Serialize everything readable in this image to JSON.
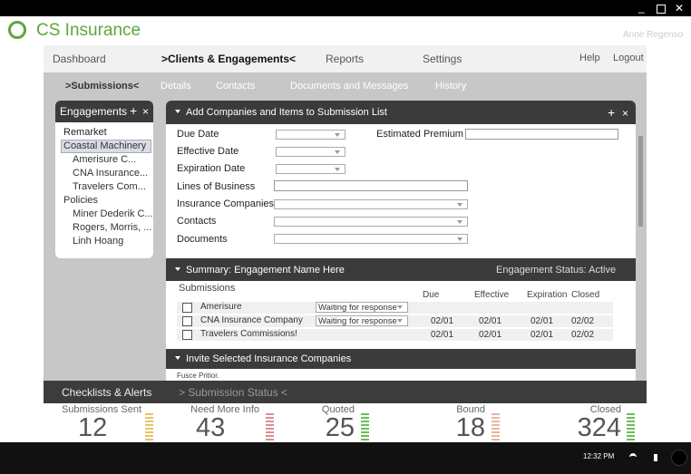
{
  "header": {
    "app_name": "CS Insurance",
    "user": "Anne Regenso"
  },
  "nav": {
    "items": [
      "Dashboard",
      ">Clients & Engagements<",
      "Reports",
      "Settings"
    ],
    "right": [
      "Help",
      "Logout"
    ]
  },
  "subnav": [
    ">Submissions<",
    "Details",
    "Contacts",
    "Documents and Messages",
    "History"
  ],
  "engagements": {
    "title": "Engagements",
    "items": [
      "Remarket",
      "Coastal Machinery",
      "Amerisure C...",
      "CNA Insurance...",
      "Travelers Com...",
      "Policies",
      "Miner Dederik C...",
      "Rogers, Morris, ...",
      "Linh Hoang"
    ]
  },
  "add_panel": {
    "title": "Add Companies and Items to Submission List",
    "fields": [
      "Due Date",
      "Effective Date",
      "Expiration Date",
      "Lines of Business",
      "Insurance Companies",
      "Contacts",
      "Documents"
    ],
    "estimated_premium": "Estimated Premium"
  },
  "summary": {
    "title": "Summary: Engagement Name Here",
    "status": "Engagement Status: Active",
    "columns": [
      "Submissions",
      "Due",
      "Effective",
      "Expiration",
      "Closed"
    ],
    "rows": [
      {
        "name": "Amerisure",
        "status": "Waiting for response"
      },
      {
        "name": "CNA Insurance Company",
        "status": "Waiting for response",
        "due": "02/01",
        "effective": "02/01",
        "expiration": "02/01",
        "closed": "02/02"
      },
      {
        "name": "Travelers Commissions!",
        "due": "02/01",
        "effective": "02/01",
        "expiration": "02/01",
        "closed": "02/02"
      }
    ]
  },
  "invite": {
    "title": "Invite Selected Insurance Companies",
    "text": "Fusce Pritior."
  },
  "bottom": {
    "tabs": [
      "Checklists & Alerts",
      "> Submission Status <"
    ],
    "stats": [
      {
        "label": "Submissions Sent",
        "value": 12
      },
      {
        "label": "Need More Info",
        "value": 43
      },
      {
        "label": "Quoted",
        "value": 25
      },
      {
        "label": "Bound",
        "value": 18
      },
      {
        "label": "Closed",
        "value": 324
      }
    ]
  },
  "taskbar": {
    "time": "12:32 PM"
  }
}
